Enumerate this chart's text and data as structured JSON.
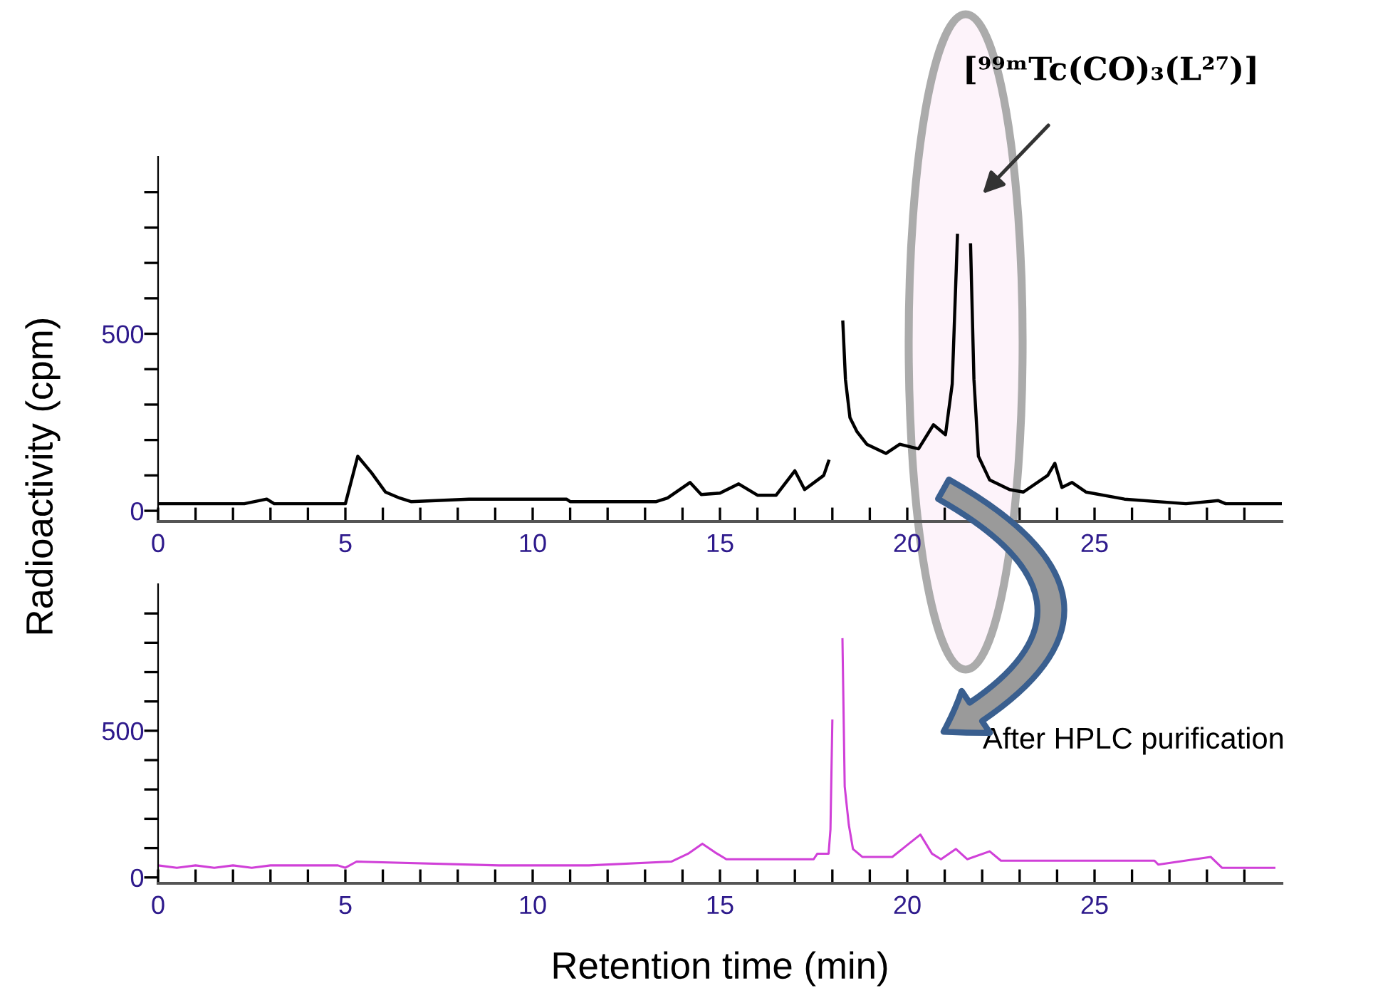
{
  "chart_data": [
    {
      "type": "line",
      "ylabel": "Radioactivity (cpm)",
      "xlim": [
        0,
        30
      ],
      "ylim": [
        -30,
        1000
      ],
      "xticks": [
        0,
        {
          "value": 1,
          "label": null
        },
        {
          "value": 2,
          "label": null
        },
        {
          "value": 3,
          "label": null
        },
        {
          "value": 4,
          "label": null
        },
        5,
        {
          "value": 6,
          "label": null
        },
        {
          "value": 7,
          "label": null
        },
        {
          "value": 8,
          "label": null
        },
        {
          "value": 9,
          "label": null
        },
        10,
        {
          "value": 11,
          "label": null
        },
        {
          "value": 12,
          "label": null
        },
        {
          "value": 13,
          "label": null
        },
        {
          "value": 14,
          "label": null
        },
        15,
        {
          "value": 16,
          "label": null
        },
        {
          "value": 17,
          "label": null
        },
        {
          "value": 18,
          "label": null
        },
        {
          "value": 19,
          "label": null
        },
        20,
        {
          "value": 21,
          "label": null
        },
        {
          "value": 22,
          "label": null
        },
        {
          "value": 23,
          "label": null
        },
        {
          "value": 24,
          "label": null
        },
        25,
        {
          "value": 26,
          "label": null
        },
        {
          "value": 27,
          "label": null
        },
        {
          "value": 28,
          "label": null
        },
        {
          "value": 29,
          "label": null
        }
      ],
      "yticks": [
        0,
        {
          "value": 100,
          "label": null
        },
        {
          "value": 200,
          "label": null
        },
        {
          "value": 300,
          "label": null
        },
        {
          "value": 400,
          "label": null
        },
        500,
        {
          "value": 600,
          "label": null
        },
        {
          "value": 700,
          "label": null
        },
        {
          "value": 800,
          "label": null
        },
        {
          "value": 900,
          "label": null
        }
      ],
      "grid": false,
      "marker": "none",
      "line_style": "solid",
      "annotations": [
        "[⁹⁹ᵐTc(CO)₃(L²⁷)]"
      ],
      "series": [
        {
          "color": "#000000",
          "x": [
            0,
            2.3,
            2.9,
            3.1,
            5.0,
            5.33,
            5.7,
            6.07,
            6.45,
            6.75,
            8.3,
            10.9,
            11.0,
            13.3,
            13.6,
            14.2,
            14.5,
            15.0,
            15.5,
            16.0,
            16.5,
            17.0,
            17.26,
            17.77,
            17.9,
            17.92,
            18.21,
            18.28,
            18.35,
            18.47,
            18.66,
            18.92,
            19.43,
            19.8,
            20.3,
            20.7,
            21.02,
            21.2,
            21.34,
            21.4,
            21.63,
            21.69,
            21.78,
            21.9,
            22.2,
            22.73,
            23.1,
            23.75,
            23.94,
            24.13,
            24.4,
            24.77,
            25.8,
            27.44,
            28.3,
            28.5,
            30.0
          ],
          "values": [
            20,
            20,
            33,
            20,
            20,
            154,
            107,
            53,
            36,
            26,
            33,
            33,
            26,
            26,
            36,
            80,
            46,
            50,
            76,
            44,
            44,
            113,
            60,
            100,
            140,
            null,
            null,
            533,
            371,
            263,
            223,
            188,
            162,
            188,
            175,
            243,
            215,
            358,
            778,
            null,
            null,
            751,
            371,
            154,
            87,
            60,
            53,
            100,
            134,
            66,
            80,
            53,
            33,
            20,
            29,
            20,
            20
          ]
        }
      ]
    },
    {
      "type": "line",
      "xlabel": "Retention time (min)",
      "xlim": [
        0,
        30
      ],
      "ylim": [
        -20,
        1000
      ],
      "xticks": [
        0,
        {
          "value": 1,
          "label": null
        },
        {
          "value": 2,
          "label": null
        },
        {
          "value": 3,
          "label": null
        },
        {
          "value": 4,
          "label": null
        },
        5,
        {
          "value": 6,
          "label": null
        },
        {
          "value": 7,
          "label": null
        },
        {
          "value": 8,
          "label": null
        },
        {
          "value": 9,
          "label": null
        },
        10,
        {
          "value": 11,
          "label": null
        },
        {
          "value": 12,
          "label": null
        },
        {
          "value": 13,
          "label": null
        },
        {
          "value": 14,
          "label": null
        },
        15,
        {
          "value": 16,
          "label": null
        },
        {
          "value": 17,
          "label": null
        },
        {
          "value": 18,
          "label": null
        },
        {
          "value": 19,
          "label": null
        },
        20,
        {
          "value": 21,
          "label": null
        },
        {
          "value": 22,
          "label": null
        },
        {
          "value": 23,
          "label": null
        },
        {
          "value": 24,
          "label": null
        },
        25,
        {
          "value": 26,
          "label": null
        },
        {
          "value": 27,
          "label": null
        },
        {
          "value": 28,
          "label": null
        },
        {
          "value": 29,
          "label": null
        }
      ],
      "yticks": [
        0,
        {
          "value": 100,
          "label": null
        },
        {
          "value": 200,
          "label": null
        },
        {
          "value": 300,
          "label": null
        },
        {
          "value": 400,
          "label": null
        },
        500,
        {
          "value": 600,
          "label": null
        },
        {
          "value": 700,
          "label": null
        },
        {
          "value": 800,
          "label": null
        },
        {
          "value": 900,
          "label": null
        }
      ],
      "grid": false,
      "marker": "none",
      "line_style": "solid",
      "annotations": [
        "After HPLC purification"
      ],
      "series": [
        {
          "color": "#d040d8",
          "x": [
            0,
            0.5,
            1.0,
            1.5,
            2.0,
            2.5,
            3.0,
            4.8,
            5.0,
            5.3,
            9.1,
            11.5,
            13.7,
            14.15,
            14.53,
            14.86,
            15.17,
            17.5,
            17.6,
            17.9,
            17.95,
            18.0,
            18.06,
            18.2,
            18.27,
            18.33,
            18.44,
            18.55,
            18.8,
            19.6,
            20.35,
            20.66,
            20.9,
            21.3,
            21.6,
            22.2,
            22.5,
            26.6,
            26.7,
            28.1,
            28.4,
            29.8
          ],
          "values": [
            41,
            33,
            41,
            33,
            41,
            33,
            41,
            41,
            33,
            54,
            41,
            41,
            54,
            81,
            115,
            86,
            62,
            62,
            81,
            81,
            164,
            535,
            null,
            null,
            812,
            310,
            179,
            97,
            70,
            70,
            146,
            81,
            62,
            97,
            62,
            89,
            57,
            57,
            44,
            70,
            33,
            33
          ]
        }
      ]
    }
  ]
}
